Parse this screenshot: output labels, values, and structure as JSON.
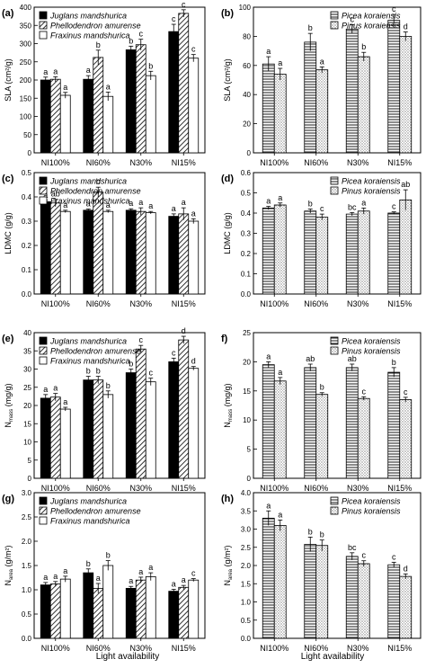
{
  "figure": {
    "xlabel": "Light availability"
  },
  "chart_data": [
    {
      "id": "a",
      "panel_label": "(a)",
      "type": "bar",
      "ylabel": "SLA (cm²/g)",
      "ylim": [
        0,
        400
      ],
      "yticks": [
        0,
        50,
        100,
        150,
        200,
        250,
        300,
        350,
        400
      ],
      "categories": [
        "NI100%",
        "NI60%",
        "N30%",
        "NI15%"
      ],
      "legend_position": "top-left",
      "series": [
        {
          "name": "Juglans mandshurica",
          "pattern": "solid",
          "values": [
            200,
            202,
            283,
            333
          ],
          "errors": [
            8,
            10,
            10,
            20
          ],
          "letters": [
            "a",
            "a",
            "b",
            "c"
          ]
        },
        {
          "name": "Phellodendron amurense",
          "pattern": "diagonal",
          "values": [
            202,
            262,
            297,
            383
          ],
          "errors": [
            7,
            20,
            15,
            10
          ],
          "letters": [
            "a",
            "b",
            "c",
            "c"
          ]
        },
        {
          "name": "Fraxinus mandshurica",
          "pattern": "open",
          "values": [
            158,
            155,
            212,
            260
          ],
          "errors": [
            8,
            12,
            12,
            10
          ],
          "letters": [
            "a",
            "a",
            "b",
            "c"
          ]
        }
      ]
    },
    {
      "id": "b",
      "panel_label": "(b)",
      "type": "bar",
      "ylabel": "SLA (cm²/g)",
      "ylim": [
        0,
        100
      ],
      "yticks": [
        0,
        20,
        40,
        60,
        80,
        100
      ],
      "categories": [
        "NI100%",
        "NI60%",
        "N30%",
        "NI15%"
      ],
      "legend_position": "top-right",
      "series": [
        {
          "name": "Picea koraiensis",
          "pattern": "hlines",
          "values": [
            61,
            76,
            85,
            91
          ],
          "errors": [
            5,
            6,
            3,
            4
          ],
          "letters": [
            "a",
            "b",
            "c",
            "c"
          ]
        },
        {
          "name": "Pinus koraiensis",
          "pattern": "dots",
          "values": [
            54,
            57,
            66,
            80
          ],
          "errors": [
            4,
            2,
            3,
            3
          ],
          "letters": [
            "a",
            "a",
            "b",
            "d"
          ]
        }
      ]
    },
    {
      "id": "c",
      "panel_label": "(c)",
      "type": "bar",
      "ylabel": "LDMC (g/g)",
      "ylim": [
        0,
        0.5
      ],
      "yticks": [
        0.0,
        0.1,
        0.2,
        0.3,
        0.4,
        0.5
      ],
      "categories": [
        "NI100%",
        "NI60%",
        "N30%",
        "NI15%"
      ],
      "legend_position": "top-left",
      "series": [
        {
          "name": "Juglans mandshurica",
          "pattern": "solid",
          "values": [
            0.38,
            0.345,
            0.345,
            0.32
          ],
          "errors": [
            0.006,
            0.005,
            0.006,
            0.01
          ],
          "letters": [
            "a",
            "a",
            "a",
            "a"
          ]
        },
        {
          "name": "Phellodendron amurense",
          "pattern": "diagonal",
          "values": [
            0.375,
            0.42,
            0.34,
            0.33
          ],
          "errors": [
            0.015,
            0.02,
            0.015,
            0.025
          ],
          "letters": [
            "ab",
            "b",
            "a",
            "a"
          ]
        },
        {
          "name": "Fraxinus mandshurica",
          "pattern": "open",
          "values": [
            0.34,
            0.34,
            0.335,
            0.3
          ],
          "errors": [
            0.005,
            0.005,
            0.005,
            0.01
          ],
          "letters": [
            "a",
            "a",
            "a",
            "a"
          ]
        }
      ]
    },
    {
      "id": "d",
      "panel_label": "(d)",
      "type": "bar",
      "ylabel": "LDMC (g/g)",
      "ylim": [
        0,
        0.6
      ],
      "yticks": [
        0.0,
        0.1,
        0.2,
        0.3,
        0.4,
        0.5,
        0.6
      ],
      "categories": [
        "NI100%",
        "NI60%",
        "N30%",
        "NI15%"
      ],
      "legend_position": "top-right",
      "series": [
        {
          "name": "Picea koraiensis",
          "pattern": "hlines",
          "values": [
            0.425,
            0.41,
            0.395,
            0.4
          ],
          "errors": [
            0.008,
            0.01,
            0.008,
            0.006
          ],
          "letters": [
            "a",
            "b",
            "bc",
            "c"
          ]
        },
        {
          "name": "Pinus koraiensis",
          "pattern": "dots",
          "values": [
            0.44,
            0.38,
            0.41,
            0.465
          ],
          "errors": [
            0.01,
            0.015,
            0.015,
            0.05
          ],
          "letters": [
            "a",
            "c",
            "a",
            "ab"
          ]
        }
      ]
    },
    {
      "id": "e",
      "panel_label": "(e)",
      "type": "bar",
      "ylabel": "N_mass (mg/g)",
      "ylim": [
        0,
        40
      ],
      "yticks": [
        0,
        5,
        10,
        15,
        20,
        25,
        30,
        35,
        40
      ],
      "categories": [
        "NI100%",
        "NI60%",
        "N30%",
        "NI15%"
      ],
      "legend_position": "top-left",
      "series": [
        {
          "name": "Juglans mandshurica",
          "pattern": "solid",
          "values": [
            22,
            27,
            29,
            32
          ],
          "errors": [
            1,
            1,
            1,
            1
          ],
          "letters": [
            "a",
            "b",
            "b",
            "c"
          ]
        },
        {
          "name": "Phellodendron amurense",
          "pattern": "diagonal",
          "values": [
            22.3,
            27,
            35.5,
            38
          ],
          "errors": [
            1,
            1,
            1,
            1
          ],
          "letters": [
            "a",
            "b",
            "c",
            "d"
          ]
        },
        {
          "name": "Fraxinus mandshurica",
          "pattern": "open",
          "values": [
            19,
            23,
            26.5,
            30.2
          ],
          "errors": [
            0.5,
            1,
            1,
            0.5
          ],
          "letters": [
            "a",
            "b",
            "c",
            "d"
          ]
        }
      ]
    },
    {
      "id": "f",
      "panel_label": "f)",
      "type": "bar",
      "ylabel": "N_mass (mg/g)",
      "ylim": [
        0,
        25
      ],
      "yticks": [
        0,
        5,
        10,
        15,
        20,
        25
      ],
      "categories": [
        "NI100%",
        "NI60%",
        "N30%",
        "NI15%"
      ],
      "legend_position": "top-right",
      "series": [
        {
          "name": "Picea koraiensis",
          "pattern": "hlines",
          "values": [
            19.5,
            19,
            19,
            18.2
          ],
          "errors": [
            0.5,
            0.6,
            0.6,
            0.8
          ],
          "letters": [
            "a",
            "ab",
            "ab",
            "b"
          ]
        },
        {
          "name": "Pinus koraiensis",
          "pattern": "dots",
          "values": [
            16.7,
            14.4,
            13.7,
            13.5
          ],
          "errors": [
            0.6,
            0.3,
            0.3,
            0.4
          ],
          "letters": [
            "a",
            "b",
            "c",
            "c"
          ]
        }
      ]
    },
    {
      "id": "g",
      "panel_label": "(g)",
      "type": "bar",
      "ylabel": "N_area (g/m²)",
      "ylim": [
        0,
        3
      ],
      "yticks": [
        0.0,
        0.5,
        1.0,
        1.5,
        2.0,
        2.5,
        3.0
      ],
      "categories": [
        "NI100%",
        "NI60%",
        "N30%",
        "NI15%"
      ],
      "legend_position": "top-left",
      "series": [
        {
          "name": "Juglans mandshurica",
          "pattern": "solid",
          "values": [
            1.1,
            1.35,
            1.03,
            0.97
          ],
          "errors": [
            0.05,
            0.08,
            0.04,
            0.04
          ],
          "letters": [
            "a",
            "b",
            "a",
            "a"
          ]
        },
        {
          "name": "Phellodendron amurense",
          "pattern": "diagonal",
          "values": [
            1.12,
            1.03,
            1.2,
            1.05
          ],
          "errors": [
            0.05,
            0.1,
            0.06,
            0.04
          ],
          "letters": [
            "a",
            "a",
            "a",
            "a"
          ]
        },
        {
          "name": "Fraxinus mandshurica",
          "pattern": "open",
          "values": [
            1.22,
            1.5,
            1.27,
            1.2
          ],
          "errors": [
            0.06,
            0.1,
            0.08,
            0.03
          ],
          "letters": [
            "a",
            "b",
            "a",
            "c"
          ]
        }
      ]
    },
    {
      "id": "h",
      "panel_label": "(h)",
      "type": "bar",
      "ylabel": "N_area (g/m²)",
      "ylim": [
        0,
        4
      ],
      "yticks": [
        0.0,
        0.5,
        1.0,
        1.5,
        2.0,
        2.5,
        3.0,
        3.5,
        4.0
      ],
      "categories": [
        "NI100%",
        "NI60%",
        "N30%",
        "NI15%"
      ],
      "legend_position": "top-right",
      "series": [
        {
          "name": "Picea koraiensis",
          "pattern": "hlines",
          "values": [
            3.3,
            2.58,
            2.25,
            2.02
          ],
          "errors": [
            0.2,
            0.2,
            0.1,
            0.07
          ],
          "letters": [
            "a",
            "b",
            "bc",
            "c"
          ]
        },
        {
          "name": "Pinus koraiensis",
          "pattern": "dots",
          "values": [
            3.1,
            2.55,
            2.05,
            1.7
          ],
          "errors": [
            0.15,
            0.15,
            0.08,
            0.07
          ],
          "letters": [
            "a",
            "b",
            "c",
            "d"
          ]
        }
      ]
    }
  ]
}
